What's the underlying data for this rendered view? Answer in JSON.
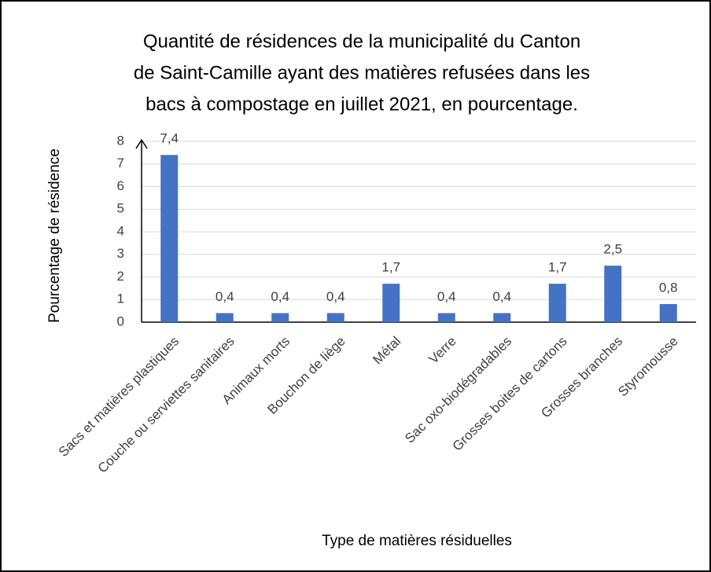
{
  "chart_data": {
    "type": "bar",
    "title": [
      "Quantité de résidences de la municipalité du Canton",
      "de Saint-Camille ayant des matières refusées dans les",
      "bacs à compostage en juillet 2021, en pourcentage."
    ],
    "x_label": "Type de matières résiduelles",
    "y_label": "Pourcentage de résidence",
    "categories": [
      "Sacs et matières plastiques",
      "Couche ou serviettes sanitaires",
      "Animaux morts",
      "Bouchon de liège",
      "Métal",
      "Verre",
      "Sac oxo-biodégradables",
      "Grosses boites de cartons",
      "Grosses branches",
      "Styromousse"
    ],
    "values": [
      7.4,
      0.4,
      0.4,
      0.4,
      1.7,
      0.4,
      0.4,
      1.7,
      2.5,
      0.8
    ],
    "value_labels": [
      "7,4",
      "0,4",
      "0,4",
      "0,4",
      "1,7",
      "0,4",
      "0,4",
      "1,7",
      "2,5",
      "0,8"
    ],
    "color": "#4472c4",
    "ylim": [
      0,
      8
    ],
    "yticks": [
      0,
      1,
      2,
      3,
      4,
      5,
      6,
      7,
      8
    ],
    "grid": true
  }
}
